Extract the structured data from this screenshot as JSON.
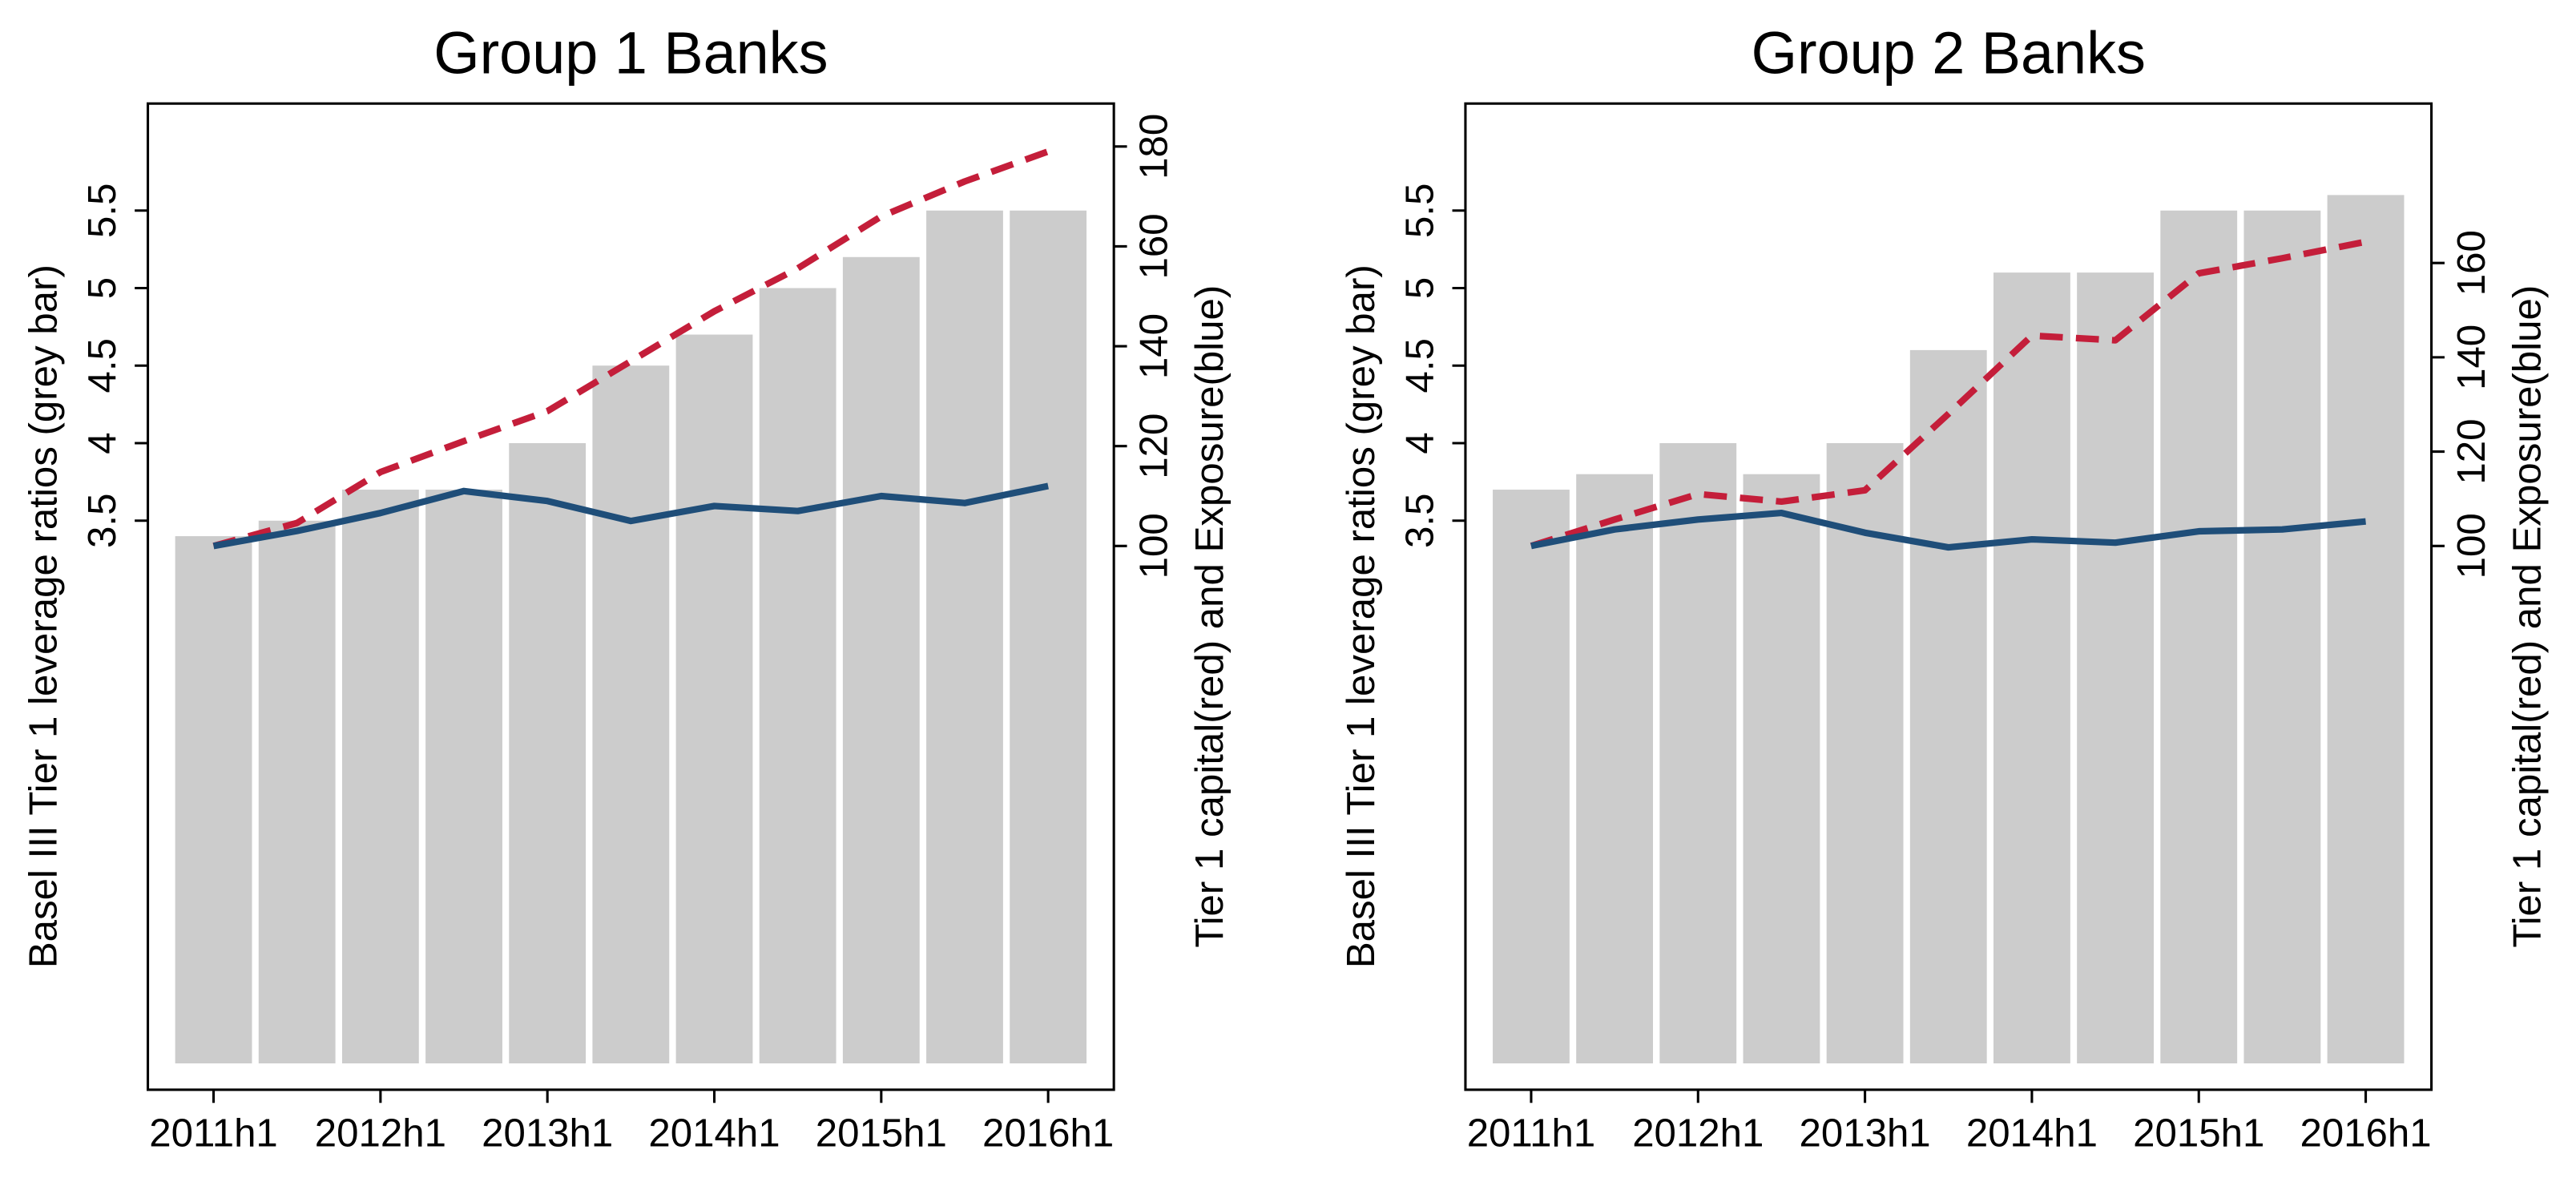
{
  "chart_data": [
    {
      "type": "bar",
      "title": "Group 1 Banks",
      "ylabel": "Basel III Tier 1 leverage ratios (grey bar)",
      "y2label": "Tier 1 capital(red) and Exposure(blue)",
      "categories": [
        "2011h1",
        null,
        "2012h1",
        null,
        "2013h1",
        null,
        "2014h1",
        null,
        "2015h1",
        null,
        "2016h1"
      ],
      "ylim": [
        -0.17,
        6.19
      ],
      "yticks": [
        3.5,
        4,
        4.5,
        5,
        5.5
      ],
      "y2lim": [
        -8.9,
        188.6
      ],
      "y2ticks": [
        100,
        120,
        140,
        160,
        180
      ],
      "grid": false,
      "series": [
        {
          "type": "bar",
          "color": "#cccccc",
          "values": [
            3.4,
            3.5,
            3.7,
            3.7,
            4.0,
            4.5,
            4.7,
            5.0,
            5.2,
            5.5,
            5.5
          ]
        },
        {
          "type": "line",
          "axis": "y2",
          "dashed": true,
          "color": "#c41e3a",
          "values": [
            100,
            104.6,
            114.8,
            121,
            127,
            137,
            147,
            155.6,
            166,
            173,
            179
          ]
        },
        {
          "type": "line",
          "axis": "y2",
          "dashed": false,
          "color": "#1f4e79",
          "values": [
            100,
            103,
            106.6,
            111,
            109,
            105,
            108,
            107,
            110,
            108.6,
            112
          ]
        }
      ]
    },
    {
      "type": "bar",
      "title": "Group 2 Banks",
      "ylabel": "Basel III Tier 1 leverage ratios (grey bar)",
      "y2label": "Tier 1 capital(red) and Exposure(blue)",
      "categories": [
        "2011h1",
        null,
        "2012h1",
        null,
        "2013h1",
        null,
        "2014h1",
        null,
        "2015h1",
        null,
        "2016h1"
      ],
      "ylim": [
        -0.17,
        6.19
      ],
      "yticks": [
        3.5,
        4,
        4.5,
        5,
        5.5
      ],
      "y2lim": [
        -15.3,
        193.8
      ],
      "y2ticks": [
        100,
        120,
        140,
        160
      ],
      "grid": false,
      "series": [
        {
          "type": "bar",
          "color": "#cccccc",
          "values": [
            3.7,
            3.8,
            4.0,
            3.8,
            4.0,
            4.6,
            5.1,
            5.1,
            5.5,
            5.5,
            5.6
          ]
        },
        {
          "type": "line",
          "axis": "y2",
          "dashed": true,
          "color": "#c41e3a",
          "values": [
            100,
            105.6,
            111,
            109.4,
            111.8,
            128,
            144.6,
            143.6,
            157.8,
            161,
            164.5
          ]
        },
        {
          "type": "line",
          "axis": "y2",
          "dashed": false,
          "color": "#1f4e79",
          "values": [
            100,
            103.5,
            105.6,
            107,
            102.8,
            99.7,
            101.4,
            100.7,
            103.1,
            103.5,
            105.2
          ]
        }
      ]
    }
  ]
}
